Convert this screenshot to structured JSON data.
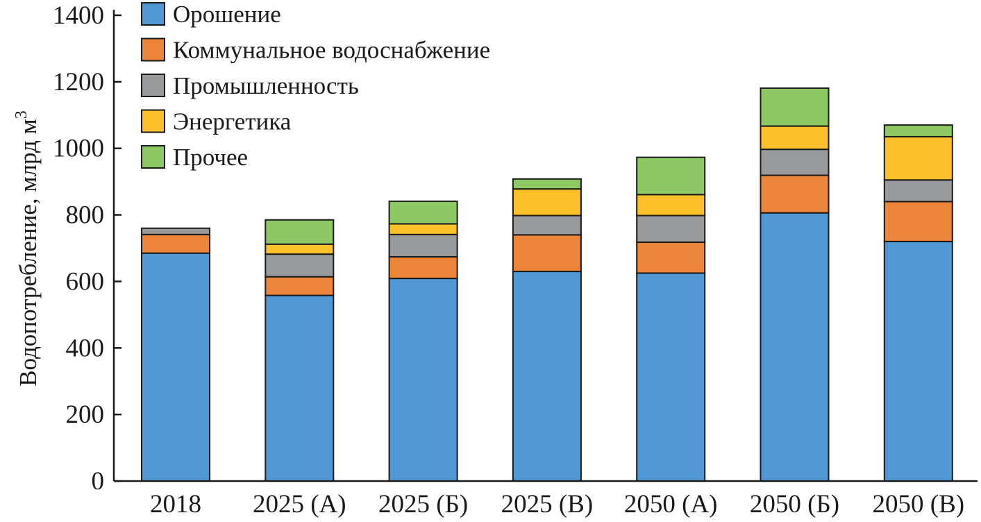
{
  "chart_data": {
    "type": "bar",
    "stacked": true,
    "categories": [
      "2018",
      "2025 (А)",
      "2025 (Б)",
      "2025 (В)",
      "2050 (А)",
      "2050 (Б)",
      "2050 (В)"
    ],
    "series": [
      {
        "name": "Орошение",
        "color": "#5198d4",
        "values": [
          685,
          558,
          609,
          630,
          625,
          806,
          720
        ]
      },
      {
        "name": "Коммунальное водоснабжение",
        "color": "#ec843a",
        "values": [
          56,
          56,
          65,
          110,
          93,
          113,
          120
        ]
      },
      {
        "name": "Промышленность",
        "color": "#999a9c",
        "values": [
          19,
          68,
          67,
          58,
          80,
          78,
          65
        ]
      },
      {
        "name": "Энергетика",
        "color": "#fcc12a",
        "values": [
          0,
          30,
          32,
          80,
          63,
          70,
          130
        ]
      },
      {
        "name": "Прочее",
        "color": "#8ec864",
        "values": [
          0,
          73,
          68,
          30,
          112,
          114,
          35
        ]
      }
    ],
    "ylabel": "Водопотребление, млрд м",
    "ylabel_superscript": "3",
    "ylim": [
      0,
      1400
    ],
    "yticks": [
      0,
      200,
      400,
      600,
      800,
      1000,
      1200,
      1400
    ],
    "grid": false,
    "legend": "top-left"
  }
}
